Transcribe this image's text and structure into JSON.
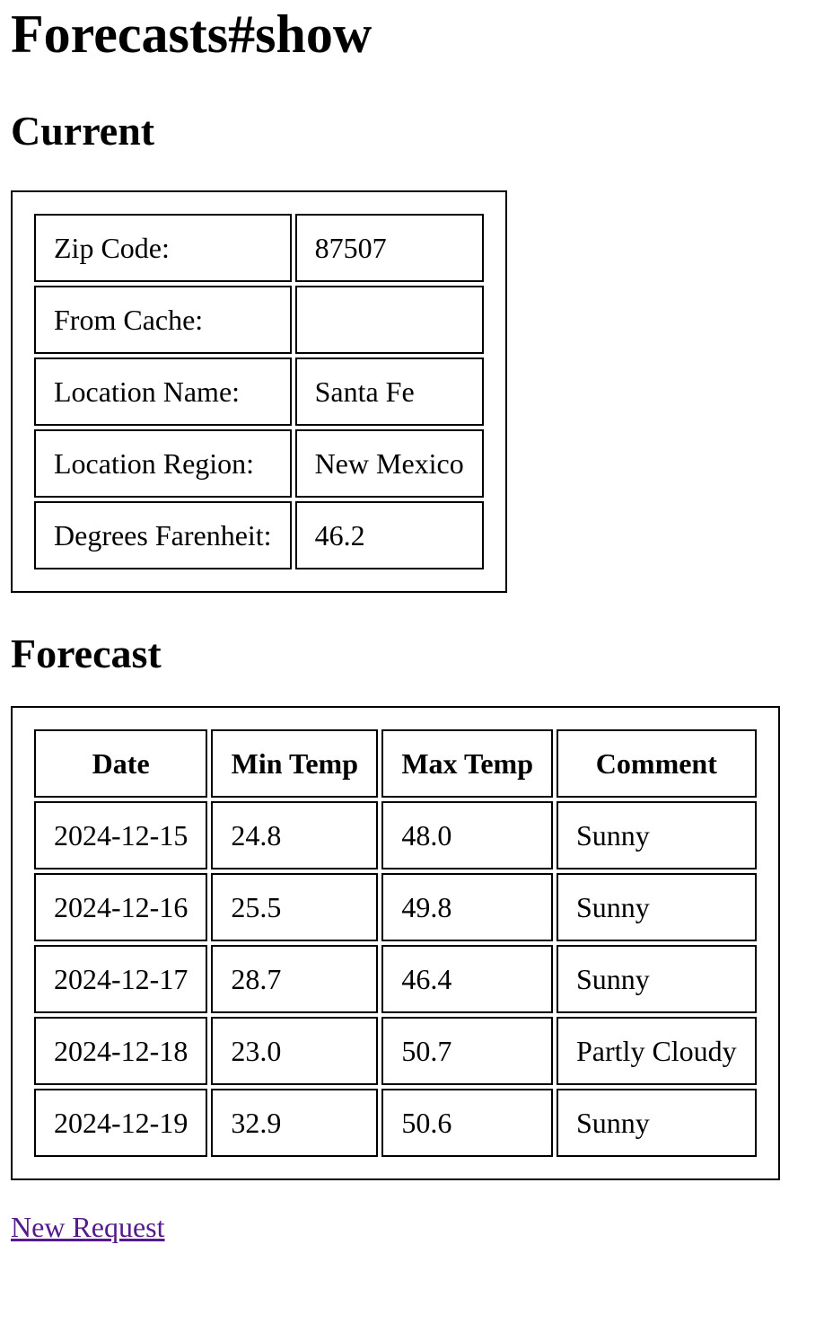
{
  "page_title": "Forecasts#show",
  "current": {
    "heading": "Current",
    "rows": [
      {
        "label": "Zip Code:",
        "value": "87507"
      },
      {
        "label": "From Cache:",
        "value": ""
      },
      {
        "label": "Location Name:",
        "value": "Santa Fe"
      },
      {
        "label": "Location Region:",
        "value": "New Mexico"
      },
      {
        "label": "Degrees Farenheit:",
        "value": "46.2"
      }
    ]
  },
  "forecast": {
    "heading": "Forecast",
    "columns": [
      "Date",
      "Min Temp",
      "Max Temp",
      "Comment"
    ],
    "rows": [
      {
        "date": "2024-12-15",
        "min": "24.8",
        "max": "48.0",
        "comment": "Sunny"
      },
      {
        "date": "2024-12-16",
        "min": "25.5",
        "max": "49.8",
        "comment": "Sunny"
      },
      {
        "date": "2024-12-17",
        "min": "28.7",
        "max": "46.4",
        "comment": "Sunny"
      },
      {
        "date": "2024-12-18",
        "min": "23.0",
        "max": "50.7",
        "comment": "Partly Cloudy"
      },
      {
        "date": "2024-12-19",
        "min": "32.9",
        "max": "50.6",
        "comment": "Sunny"
      }
    ]
  },
  "links": {
    "new_request": "New Request"
  },
  "colors": {
    "link_visited": "#551a8b"
  }
}
